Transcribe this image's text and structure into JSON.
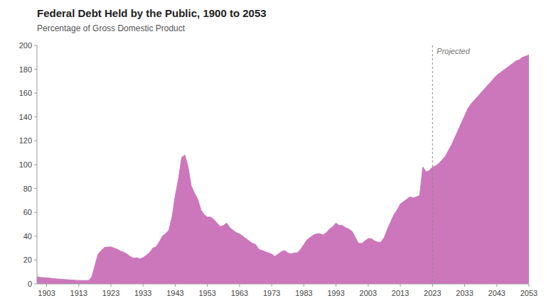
{
  "chart_data": {
    "type": "area",
    "title": "Federal Debt Held by the Public, 1900 to 2053",
    "subtitle": "Percentage of Gross Domestic Product",
    "color": "#CC77BB",
    "grid": false,
    "xlim": [
      1900,
      2053
    ],
    "ylim": [
      0,
      200
    ],
    "xticks": [
      1903,
      1913,
      1923,
      1933,
      1943,
      1953,
      1963,
      1973,
      1983,
      1993,
      2003,
      2013,
      2023,
      2033,
      2043,
      2053
    ],
    "yticks": [
      0,
      20,
      40,
      60,
      80,
      100,
      120,
      140,
      160,
      180,
      200
    ],
    "annotations": [
      {
        "x": 2023,
        "text": "Projected"
      }
    ],
    "x": [
      1900,
      1901,
      1902,
      1903,
      1904,
      1905,
      1906,
      1907,
      1908,
      1909,
      1910,
      1911,
      1912,
      1913,
      1914,
      1915,
      1916,
      1917,
      1918,
      1919,
      1920,
      1921,
      1922,
      1923,
      1924,
      1925,
      1926,
      1927,
      1928,
      1929,
      1930,
      1931,
      1932,
      1933,
      1934,
      1935,
      1936,
      1937,
      1938,
      1939,
      1940,
      1941,
      1942,
      1943,
      1944,
      1945,
      1946,
      1947,
      1948,
      1949,
      1950,
      1951,
      1952,
      1953,
      1954,
      1955,
      1956,
      1957,
      1958,
      1959,
      1960,
      1961,
      1962,
      1963,
      1964,
      1965,
      1966,
      1967,
      1968,
      1969,
      1970,
      1971,
      1972,
      1973,
      1974,
      1975,
      1976,
      1977,
      1978,
      1979,
      1980,
      1981,
      1982,
      1983,
      1984,
      1985,
      1986,
      1987,
      1988,
      1989,
      1990,
      1991,
      1992,
      1993,
      1994,
      1995,
      1996,
      1997,
      1998,
      1999,
      2000,
      2001,
      2002,
      2003,
      2004,
      2005,
      2006,
      2007,
      2008,
      2009,
      2010,
      2011,
      2012,
      2013,
      2014,
      2015,
      2016,
      2017,
      2018,
      2019,
      2020,
      2021,
      2022,
      2023,
      2024,
      2025,
      2026,
      2027,
      2028,
      2029,
      2030,
      2031,
      2032,
      2033,
      2034,
      2035,
      2036,
      2037,
      2038,
      2039,
      2040,
      2041,
      2042,
      2043,
      2044,
      2045,
      2046,
      2047,
      2048,
      2049,
      2050,
      2051,
      2052,
      2053
    ],
    "values": [
      6.0,
      5.5,
      5.2,
      5.0,
      4.8,
      4.5,
      4.2,
      4.0,
      3.8,
      3.6,
      3.4,
      3.2,
      3.0,
      2.9,
      2.8,
      2.9,
      2.8,
      5.5,
      15.0,
      25.0,
      28.0,
      30.5,
      31.0,
      31.0,
      30.0,
      29.0,
      27.5,
      26.5,
      25.0,
      23.0,
      21.5,
      22.0,
      21.0,
      22.0,
      24.0,
      26.0,
      30.0,
      31.0,
      35.0,
      40.0,
      42.0,
      45.0,
      56.0,
      74.0,
      88.0,
      106.0,
      108.0,
      98.0,
      82.0,
      76.0,
      71.0,
      62.0,
      58.0,
      56.0,
      56.0,
      54.0,
      51.0,
      48.0,
      49.0,
      51.0,
      47.0,
      45.0,
      43.0,
      42.0,
      40.0,
      38.0,
      36.0,
      34.0,
      33.0,
      29.0,
      28.0,
      27.0,
      26.0,
      25.0,
      23.0,
      25.0,
      27.0,
      28.0,
      26.0,
      25.0,
      26.0,
      26.0,
      29.0,
      33.0,
      37.0,
      39.0,
      41.0,
      42.0,
      42.0,
      41.0,
      43.0,
      46.0,
      48.0,
      51.0,
      49.0,
      49.0,
      47.0,
      46.0,
      44.0,
      39.0,
      34.0,
      34.0,
      36.0,
      38.0,
      38.0,
      36.0,
      35.0,
      35.0,
      39.0,
      46.0,
      52.0,
      58.0,
      62.0,
      67.0,
      69.0,
      71.0,
      73.0,
      72.0,
      73.0,
      74.0,
      98.0,
      94.0,
      95.0,
      98.0,
      99.0,
      101.0,
      104.0,
      107.0,
      112.0,
      117.0,
      123.0,
      129.0,
      135.0,
      141.0,
      147.0,
      151.0,
      154.0,
      157.0,
      160.0,
      163.0,
      166.0,
      169.0,
      172.0,
      175.0,
      177.0,
      179.0,
      181.0,
      183.0,
      185.0,
      187.0,
      188.0,
      190.0,
      191.0,
      192.0
    ]
  }
}
